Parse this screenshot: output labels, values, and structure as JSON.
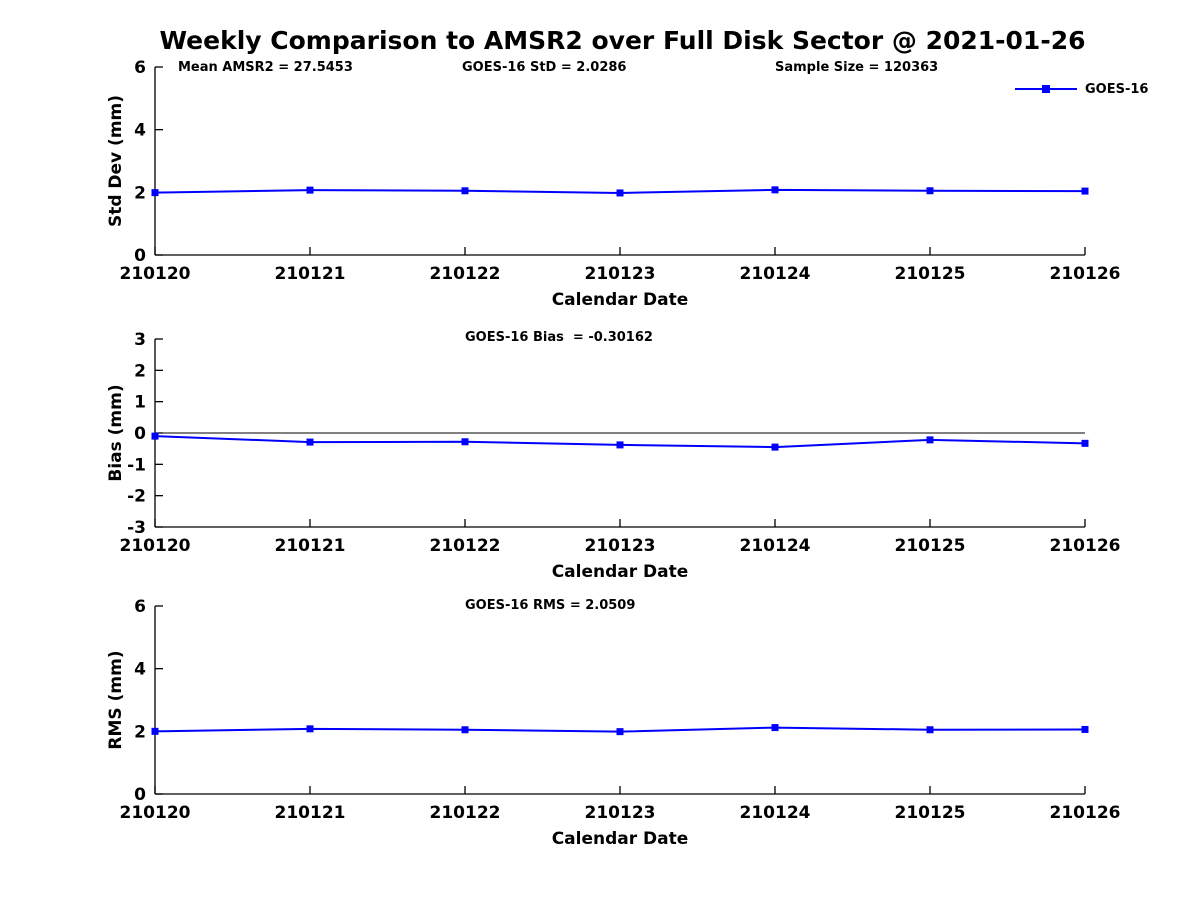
{
  "page_title": "Weekly Comparison to AMSR2 over Full Disk Sector @ 2021-01-26",
  "colors": {
    "series": "#0000FF",
    "axis": "#000000",
    "background": "#FFFFFF",
    "text": "#000000"
  },
  "legend": {
    "label": "GOES-16",
    "position": "upper right",
    "marker": "filled-square"
  },
  "annotations": {
    "mean_amsr2": "Mean AMSR2 = 27.5453",
    "goes16_std": "GOES-16 StD = 2.0286",
    "sample_size": "Sample Size = 120363",
    "goes16_bias": "GOES-16 Bias  = -0.30162",
    "goes16_rms": "GOES-16 RMS = 2.0509"
  },
  "chart_data": [
    {
      "type": "line",
      "name": "std-dev",
      "categories": [
        "210120",
        "210121",
        "210122",
        "210123",
        "210124",
        "210125",
        "210126"
      ],
      "series": [
        {
          "name": "GOES-16",
          "values": [
            1.99,
            2.07,
            2.05,
            1.98,
            2.08,
            2.05,
            2.04
          ]
        }
      ],
      "xlabel": "Calendar Date",
      "ylabel": "Std Dev (mm)",
      "ylim": [
        0,
        6
      ],
      "yticks": [
        0,
        2,
        4,
        6
      ],
      "grid": false,
      "zero_line": false,
      "annotations": [
        "Mean AMSR2 = 27.5453",
        "GOES-16 StD = 2.0286",
        "Sample Size = 120363"
      ],
      "legend_entries": [
        "GOES-16"
      ],
      "legend_position": "upper right"
    },
    {
      "type": "line",
      "name": "bias",
      "categories": [
        "210120",
        "210121",
        "210122",
        "210123",
        "210124",
        "210125",
        "210126"
      ],
      "series": [
        {
          "name": "GOES-16",
          "values": [
            -0.1,
            -0.29,
            -0.28,
            -0.38,
            -0.45,
            -0.22,
            -0.33
          ]
        }
      ],
      "xlabel": "Calendar Date",
      "ylabel": "Bias (mm)",
      "ylim": [
        -3,
        3
      ],
      "yticks": [
        -3,
        -2,
        -1,
        0,
        1,
        2,
        3
      ],
      "grid": false,
      "zero_line": true,
      "annotations": [
        "GOES-16 Bias  = -0.30162"
      ]
    },
    {
      "type": "line",
      "name": "rms",
      "categories": [
        "210120",
        "210121",
        "210122",
        "210123",
        "210124",
        "210125",
        "210126"
      ],
      "series": [
        {
          "name": "GOES-16",
          "values": [
            2.0,
            2.08,
            2.05,
            1.99,
            2.12,
            2.05,
            2.06
          ]
        }
      ],
      "xlabel": "Calendar Date",
      "ylabel": "RMS (mm)",
      "ylim": [
        0,
        6
      ],
      "yticks": [
        0,
        2,
        4,
        6
      ],
      "grid": false,
      "zero_line": false,
      "annotations": [
        "GOES-16 RMS = 2.0509"
      ]
    }
  ]
}
